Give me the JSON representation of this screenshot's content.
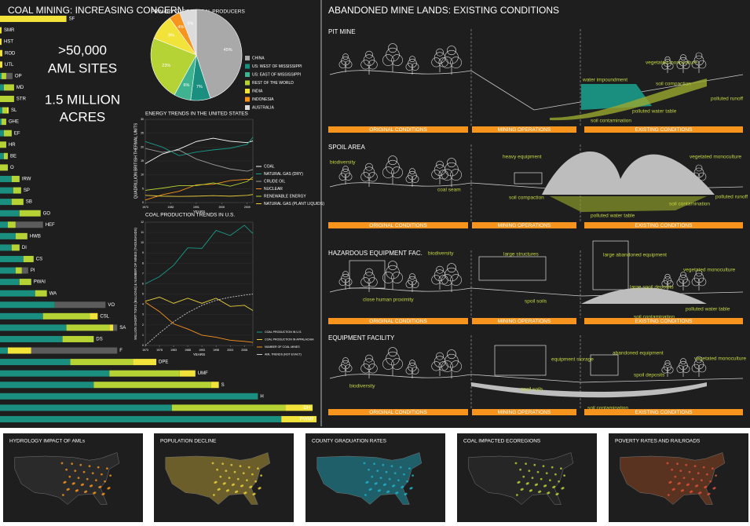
{
  "header": {
    "title": "COAL MINING: INCREASING CONCERN",
    "right_title": "ABANDONED MINE LANDS: EXISTING CONDITIONS"
  },
  "stats": [
    ">50,000",
    "AML SITES",
    "1.5 MILLION",
    "ACRES"
  ],
  "chart_data": [
    {
      "type": "bar",
      "orientation": "horizontal",
      "stacked": true,
      "categories": [
        "SF",
        "SMR",
        "HST",
        "ROD",
        "UTL",
        "OP",
        "MD",
        "STR",
        "SL",
        "GHE",
        "EF",
        "HR",
        "BE",
        "O",
        "IRW",
        "SP",
        "SB",
        "GO",
        "HEF",
        "HWB",
        "DI",
        "CS",
        "PI",
        "PWAI",
        "WA",
        "VO",
        "CSL",
        "SA",
        "DS",
        "F",
        "DPE",
        "UMF",
        "S",
        "H",
        "DH",
        "PWMF"
      ],
      "series": [
        {
          "color": "#1a8f80",
          "values": [
            0,
            0,
            0,
            0,
            0,
            2,
            5,
            0,
            3,
            2,
            5,
            0,
            5,
            0,
            15,
            17,
            15,
            25,
            10,
            20,
            15,
            30,
            20,
            25,
            45,
            70,
            55,
            85,
            80,
            10,
            90,
            140,
            120,
            330,
            220,
            360
          ]
        },
        {
          "color": "#b6d335",
          "values": [
            0,
            0,
            0,
            0,
            0,
            6,
            13,
            18,
            6,
            6,
            10,
            8,
            5,
            10,
            10,
            10,
            15,
            27,
            10,
            15,
            10,
            13,
            8,
            15,
            15,
            0,
            60,
            55,
            40,
            0,
            80,
            90,
            150,
            0,
            145,
            0
          ]
        },
        {
          "color": "#f2e33a",
          "values": [
            85,
            2,
            2,
            3,
            3,
            0,
            0,
            0,
            2,
            0,
            0,
            0,
            0,
            0,
            0,
            0,
            0,
            0,
            0,
            0,
            0,
            0,
            0,
            0,
            0,
            0,
            10,
            5,
            0,
            30,
            30,
            20,
            10,
            0,
            35,
            45
          ]
        },
        {
          "color": "#5c5c5c",
          "values": [
            0,
            0,
            0,
            0,
            0,
            8,
            0,
            0,
            0,
            0,
            0,
            0,
            0,
            0,
            0,
            0,
            0,
            0,
            35,
            0,
            0,
            0,
            8,
            0,
            0,
            65,
            0,
            5,
            0,
            110,
            0,
            0,
            0,
            0,
            0,
            0
          ]
        }
      ],
      "xlim": [
        0,
        410
      ]
    },
    {
      "type": "pie",
      "title": "PRIMARY GLOBAL COAL PRODUCERS",
      "categories": [
        "CHINA",
        "US: WEST OF MISSISSIPPI",
        "US: EAST OF MISSISSIPPI",
        "REST OF THE WORLD",
        "INDIA",
        "INDONESIA",
        "AUSTRALIA"
      ],
      "values": [
        45,
        7,
        6,
        23,
        9,
        4,
        6
      ],
      "value_labels": [
        "45%",
        "7%",
        "6%",
        "23%",
        "9%",
        "4%",
        "6%"
      ],
      "colors": [
        "#a9a9a9",
        "#1a8f80",
        "#3fb38f",
        "#b6d335",
        "#f2e33a",
        "#f7941d",
        "#dcdcdc"
      ]
    },
    {
      "type": "line",
      "title": "ENERGY TRENDS IN THE UNITED STATES",
      "y_label": "QUADRILLION BRITISH THERMAL UNITS",
      "x_label": "YEARS",
      "x": [
        1973,
        1979,
        1985,
        1991,
        1997,
        2003,
        2009,
        2011
      ],
      "series": [
        {
          "name": "COAL",
          "color": "#ffffff",
          "values": [
            14,
            17.5,
            19.3,
            22,
            23.2,
            22.1,
            21.6,
            22.2
          ]
        },
        {
          "name": "NATURAL GAS (DRY)",
          "color": "#1a9a88",
          "values": [
            22,
            20,
            16.9,
            18.2,
            19,
            19.6,
            21,
            23.5
          ]
        },
        {
          "name": "CRUDE OIL",
          "color": "#9a9a9a",
          "values": [
            19.5,
            18.1,
            18.9,
            15.7,
            13.7,
            12.1,
            11.3,
            11.9
          ]
        },
        {
          "name": "NUCLEAR",
          "color": "#f7941d",
          "values": [
            0.9,
            2.8,
            4.1,
            6.4,
            6.6,
            7.9,
            8.4,
            8.3
          ]
        },
        {
          "name": "RENEWABLE ENERGY",
          "color": "#b6d335",
          "values": [
            4.4,
            5.2,
            6.1,
            6.1,
            7.1,
            5.9,
            7.6,
            9.2
          ]
        },
        {
          "name": "NATURAL GAS (PLANT LIQUIDS)",
          "color": "#e8c93a",
          "values": [
            2.6,
            2.3,
            2.2,
            2.3,
            2.5,
            2.3,
            2.6,
            2.9
          ]
        }
      ],
      "xlim": [
        1973,
        2011
      ],
      "ylim": [
        0,
        30
      ],
      "xticks": [
        1973,
        1982,
        1991,
        2000,
        2009
      ],
      "yticks": [
        0,
        5,
        10,
        15,
        20,
        25,
        30
      ]
    },
    {
      "type": "line",
      "title": "COAL PRODUCTION TRENDS IN U.S.",
      "y_label": "MILLION SHORT TONS (BILLIONS) & NUMBER OF MINES (THOUSANDS)",
      "x_label": "YEARS",
      "x": [
        1973,
        1978,
        1983,
        1988,
        1993,
        1998,
        2003,
        2008,
        2011
      ],
      "series": [
        {
          "name": "COAL PRODUCTION IN U.S.",
          "color": "#1a9a88",
          "values": [
            6,
            6.7,
            7.8,
            9.5,
            9.45,
            11.2,
            10.7,
            11.7,
            10.9
          ]
        },
        {
          "name": "COAL PRODUCTION IN APPALACHIA",
          "color": "#e8d13a",
          "values": [
            4.3,
            4.7,
            4.1,
            4.6,
            4.1,
            4.6,
            3.8,
            3.9,
            3.4
          ]
        },
        {
          "name": "NUMBER OF COAL MINES",
          "color": "#f7941d",
          "values": [
            4.2,
            3.3,
            2.1,
            1.6,
            1,
            0.8,
            0.5,
            0.4,
            0.3
          ]
        },
        {
          "name": "AML TRENDS (NOT EXACT)",
          "color": "#cccccc",
          "dashed": true,
          "values": [
            0,
            1.2,
            2.3,
            3.2,
            3.9,
            4.4,
            4.7,
            4.9,
            5
          ]
        }
      ],
      "xlim": [
        1973,
        2011
      ],
      "ylim": [
        0,
        12
      ],
      "xticks": [
        1973,
        1978,
        1983,
        1988,
        1993,
        1998,
        2003,
        2008
      ],
      "yticks": [
        0,
        1,
        2,
        3,
        4,
        5,
        6,
        7,
        8,
        9,
        10,
        11,
        12
      ]
    }
  ],
  "sections": [
    {
      "name": "PIT MINE",
      "labels": [
        "vegetated monoculture",
        "water impoundment",
        "soil compaction",
        "polluted runoff",
        "polluted water table",
        "soil contamination"
      ],
      "phases": [
        "ORIGINAL CONDITIONS",
        "MINING OPERATIONS",
        "EXISTING CONDITIONS"
      ]
    },
    {
      "name": "SPOIL AREA",
      "labels": [
        "biodiversity",
        "heavy equipment",
        "vegetated monoculture",
        "coal seam",
        "soil compaction",
        "polluted runoff",
        "soil contamination",
        "polluted water table"
      ],
      "phases": [
        "ORIGINAL CONDITIONS",
        "MINING OPERATIONS",
        "EXISTING CONDITIONS"
      ]
    },
    {
      "name": "HAZARDOUS EQUIPMENT FAC.",
      "labels": [
        "biodiversity",
        "large structures",
        "large abandoned equipment",
        "vegetated monoculture",
        "large spoil deposits",
        "close human proximity",
        "spoil soils",
        "polluted water table",
        "soil contamination"
      ],
      "phases": [
        "ORIGINAL CONDITIONS",
        "MINING OPERATIONS",
        "EXISTING CONDITIONS"
      ]
    },
    {
      "name": "EQUIPMENT FACILITY",
      "labels": [
        "equipment storage",
        "abandoned equipment",
        "vegetated monoculture",
        "spoil deposits",
        "biodiversity",
        "spoil soils",
        "soil contamination"
      ],
      "phases": [
        "ORIGINAL CONDITIONS",
        "MINING OPERATIONS",
        "EXISTING CONDITIONS"
      ]
    }
  ],
  "maps": [
    "HYDROLOGY IMPACT OF AMLs",
    "POPULATION DECLINE",
    "COUNTY GRADUATION RATES",
    "COAL IMPACTED ECOREGIONS",
    "POVERTY RATES AND RAILROADS"
  ]
}
